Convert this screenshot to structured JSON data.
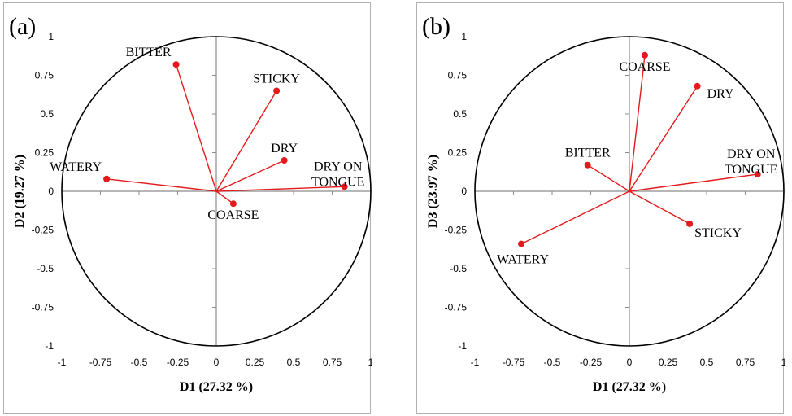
{
  "chart_data": [
    {
      "type": "scatter",
      "panel_label": "(a)",
      "xlabel": "D1 (27.32 %)",
      "ylabel": "D2 (19.27 %)",
      "xlim": [
        -1,
        1
      ],
      "ylim": [
        -1,
        1
      ],
      "xticks": [
        "-1",
        "-0.75",
        "-0.5",
        "-0.25",
        "0",
        "0.25",
        "0.5",
        "0.75",
        "1"
      ],
      "yticks": [
        "1",
        "0.75",
        "0.5",
        "0.25",
        "0",
        "-0.25",
        "-0.5",
        "-0.75",
        "-1"
      ],
      "correlation_circle": true,
      "vector_color": "#e41a1c",
      "points": [
        {
          "label": "BITTER",
          "x": -0.26,
          "y": 0.82,
          "label_pos": "upper-left"
        },
        {
          "label": "STICKY",
          "x": 0.39,
          "y": 0.65,
          "label_pos": "above"
        },
        {
          "label": "DRY",
          "x": 0.44,
          "y": 0.2,
          "label_pos": "above"
        },
        {
          "label": "DRY ON TONGUE",
          "x": 0.83,
          "y": 0.03,
          "label_pos": "upper-left-two-line"
        },
        {
          "label": "WATERY",
          "x": -0.71,
          "y": 0.08,
          "label_pos": "upper-left"
        },
        {
          "label": "COARSE",
          "x": 0.11,
          "y": -0.08,
          "label_pos": "below"
        }
      ]
    },
    {
      "type": "scatter",
      "panel_label": "(b)",
      "xlabel": "D1 (27.32 %)",
      "ylabel": "D3 (23.97 %)",
      "xlim": [
        -1,
        1
      ],
      "ylim": [
        -1,
        1
      ],
      "xticks": [
        "-1",
        "-0.75",
        "-0.5",
        "-0.25",
        "0",
        "0.25",
        "0.5",
        "0.75",
        "1"
      ],
      "yticks": [
        "1",
        "0.75",
        "0.5",
        "0.25",
        "0",
        "-0.25",
        "-0.5",
        "-0.75",
        "-1"
      ],
      "correlation_circle": true,
      "vector_color": "#e41a1c",
      "points": [
        {
          "label": "COARSE",
          "x": 0.1,
          "y": 0.88,
          "label_pos": "below"
        },
        {
          "label": "DRY",
          "x": 0.44,
          "y": 0.68,
          "label_pos": "right"
        },
        {
          "label": "BITTER",
          "x": -0.27,
          "y": 0.17,
          "label_pos": "above"
        },
        {
          "label": "DRY ON TONGUE",
          "x": 0.83,
          "y": 0.11,
          "label_pos": "upper-left-two-line"
        },
        {
          "label": "STICKY",
          "x": 0.39,
          "y": -0.21,
          "label_pos": "below-right"
        },
        {
          "label": "WATERY",
          "x": -0.7,
          "y": -0.34,
          "label_pos": "below-left"
        }
      ]
    }
  ]
}
